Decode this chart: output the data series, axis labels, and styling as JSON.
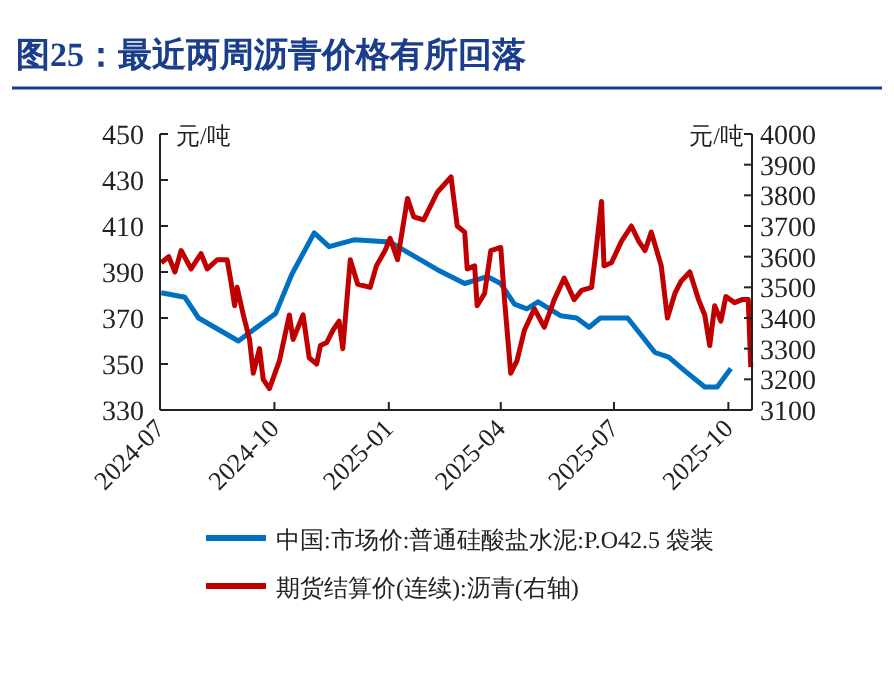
{
  "chart_data": {
    "type": "line",
    "title": "图25：最近两周沥青价格有所回落",
    "ylabel": "元/吨",
    "y2label": "元/吨",
    "xlim": [
      "2024-07-01",
      "2025-10-20"
    ],
    "xticks": [
      {
        "value": "2024-07-01",
        "label": "2024-07"
      },
      {
        "value": "2024-10-01",
        "label": "2024-10"
      },
      {
        "value": "2025-01-01",
        "label": "2025-01"
      },
      {
        "value": "2025-04-01",
        "label": "2025-04"
      },
      {
        "value": "2025-07-01",
        "label": "2025-07"
      },
      {
        "value": "2025-10-01",
        "label": "2025-10"
      }
    ],
    "ylim": [
      330,
      450
    ],
    "yticks": [
      330,
      350,
      370,
      390,
      410,
      430,
      450
    ],
    "y2lim": [
      3100,
      4000
    ],
    "y2ticks": [
      3100,
      3200,
      3300,
      3400,
      3500,
      3600,
      3700,
      3800,
      3900,
      4000
    ],
    "legend": "bottom",
    "grid": false,
    "marker": "none",
    "line_style": "solid",
    "series": [
      {
        "name": "中国:市场价:普通硅酸盐水泥:P.O42.5 袋装",
        "color": "#0070c0",
        "x": [
          "2024-07-02",
          "2024-07-21",
          "2024-08-01",
          "2024-09-02",
          "2024-10-02",
          "2024-10-15",
          "2024-11-02",
          "2024-11-14",
          "2024-12-04",
          "2025-01-02",
          "2025-01-21",
          "2025-02-09",
          "2025-03-03",
          "2025-03-21",
          "2025-04-01",
          "2025-04-12",
          "2025-04-22",
          "2025-05-01",
          "2025-05-19",
          "2025-06-01",
          "2025-06-11",
          "2025-06-20",
          "2025-07-12",
          "2025-08-03",
          "2025-08-14",
          "2025-08-27",
          "2025-09-12",
          "2025-09-22",
          "2025-10-03"
        ],
        "values": [
          381,
          379,
          370,
          360,
          372,
          389,
          407,
          401,
          404,
          403,
          397,
          391,
          385,
          388,
          385,
          376,
          374,
          377,
          371,
          370,
          366,
          370,
          370,
          355,
          353,
          347,
          340,
          340,
          348
        ]
      },
      {
        "name": "期货结算价(连续):沥青(右轴)",
        "color": "#c00000",
        "axis": "y2",
        "x": [
          "2024-07-02",
          "2024-07-08",
          "2024-07-13",
          "2024-07-18",
          "2024-07-26",
          "2024-08-03",
          "2024-08-08",
          "2024-08-16",
          "2024-08-24",
          "2024-08-27",
          "2024-08-30",
          "2024-09-01",
          "2024-09-06",
          "2024-09-11",
          "2024-09-14",
          "2024-09-19",
          "2024-09-22",
          "2024-09-27",
          "2024-10-05",
          "2024-10-13",
          "2024-10-16",
          "2024-10-24",
          "2024-10-29",
          "2024-11-04",
          "2024-11-07",
          "2024-11-12",
          "2024-11-17",
          "2024-11-22",
          "2024-11-25",
          "2024-12-01",
          "2024-12-07",
          "2024-12-17",
          "2024-12-22",
          "2024-12-29",
          "2025-01-02",
          "2025-01-08",
          "2025-01-16",
          "2025-01-21",
          "2025-01-29",
          "2025-02-09",
          "2025-02-20",
          "2025-02-25",
          "2025-03-03",
          "2025-03-05",
          "2025-03-11",
          "2025-03-13",
          "2025-03-19",
          "2025-03-24",
          "2025-04-01",
          "2025-04-04",
          "2025-04-09",
          "2025-04-14",
          "2025-04-20",
          "2025-04-28",
          "2025-05-06",
          "2025-05-14",
          "2025-05-22",
          "2025-05-30",
          "2025-06-05",
          "2025-06-13",
          "2025-06-16",
          "2025-06-21",
          "2025-06-23",
          "2025-06-29",
          "2025-07-07",
          "2025-07-15",
          "2025-07-21",
          "2025-07-26",
          "2025-07-31",
          "2025-08-08",
          "2025-08-13",
          "2025-08-19",
          "2025-08-24",
          "2025-08-31",
          "2025-09-07",
          "2025-09-12",
          "2025-09-16",
          "2025-09-20",
          "2025-09-25",
          "2025-09-29",
          "2025-10-06",
          "2025-10-12",
          "2025-10-17",
          "2025-10-19"
        ],
        "values": [
          3580,
          3600,
          3550,
          3620,
          3560,
          3610,
          3560,
          3590,
          3590,
          3520,
          3440,
          3500,
          3410,
          3330,
          3220,
          3300,
          3200,
          3170,
          3260,
          3410,
          3330,
          3410,
          3270,
          3250,
          3310,
          3320,
          3360,
          3390,
          3300,
          3590,
          3510,
          3500,
          3570,
          3620,
          3660,
          3590,
          3790,
          3730,
          3720,
          3810,
          3860,
          3700,
          3680,
          3560,
          3570,
          3440,
          3480,
          3620,
          3630,
          3460,
          3220,
          3260,
          3360,
          3430,
          3370,
          3460,
          3530,
          3460,
          3490,
          3500,
          3600,
          3780,
          3570,
          3580,
          3650,
          3700,
          3650,
          3620,
          3680,
          3570,
          3400,
          3480,
          3520,
          3550,
          3460,
          3410,
          3310,
          3440,
          3390,
          3470,
          3450,
          3460,
          3460,
          3240
        ]
      }
    ]
  }
}
